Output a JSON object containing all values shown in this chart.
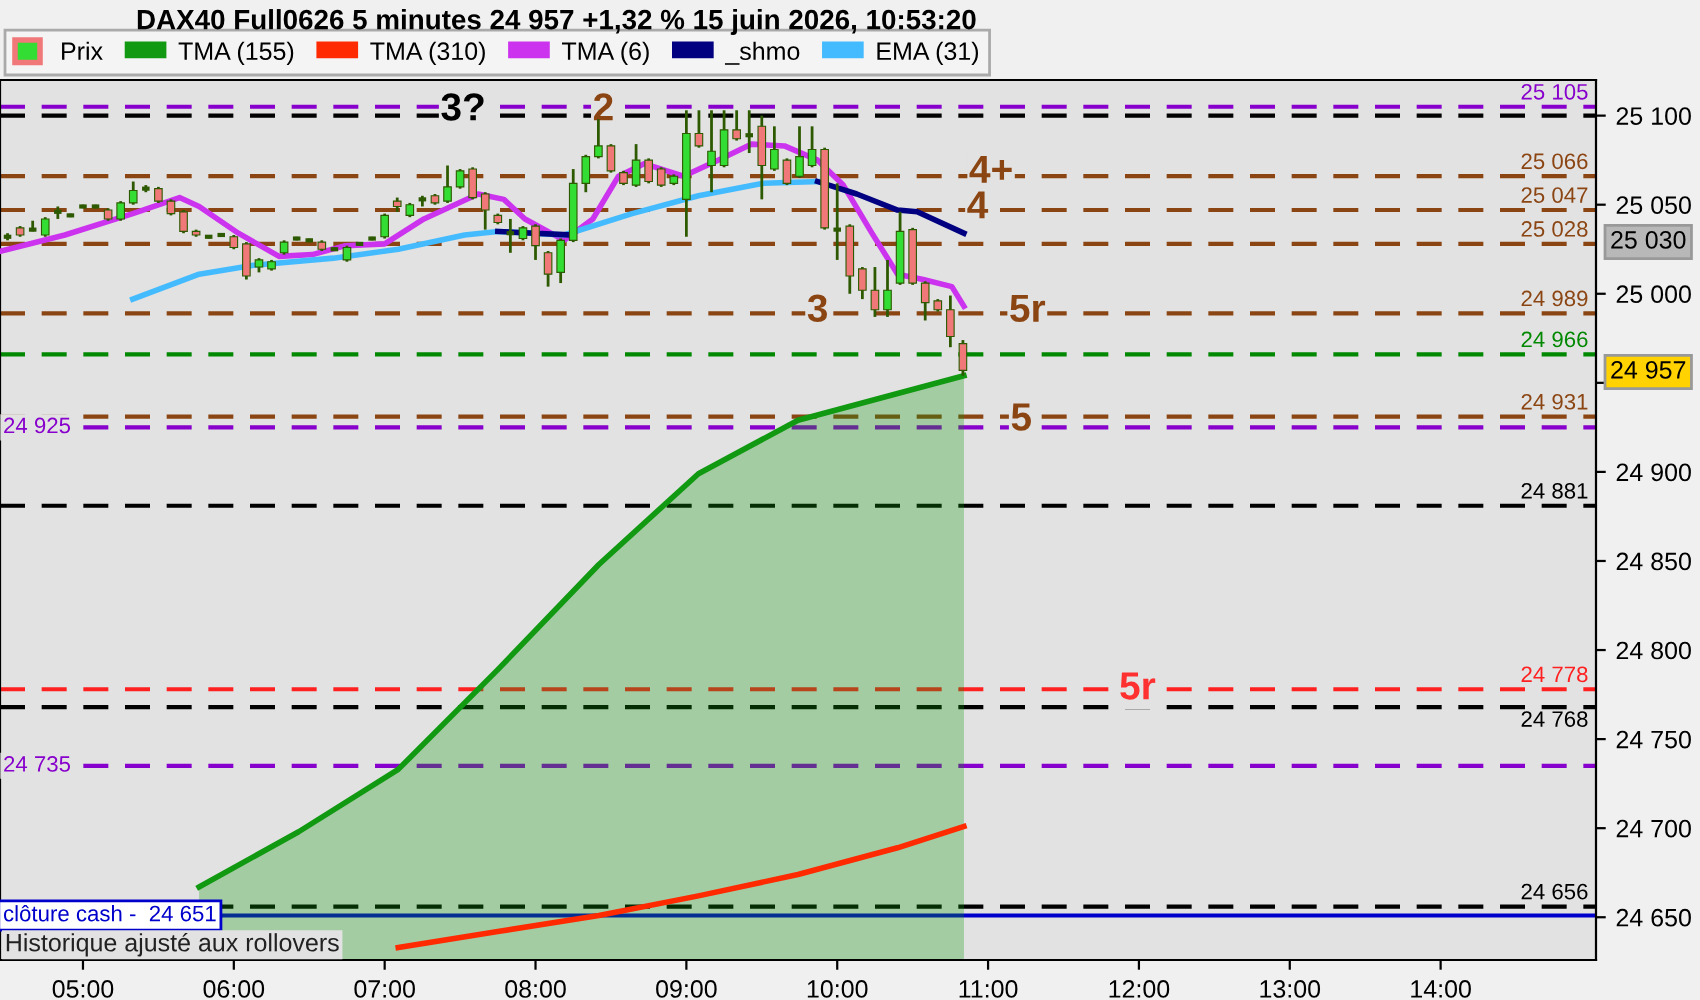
{
  "chart_data": {
    "type": "candlestick",
    "title": "DAX40 Full0626 5 minutes 24 957 +1,32 % 15 juin 2026, 10:53:20",
    "xlim": [
      4.45,
      15.03
    ],
    "ylim": [
      24626,
      25120
    ],
    "xticks": [
      {
        "value": 5,
        "label": "05:00"
      },
      {
        "value": 6,
        "label": "06:00"
      },
      {
        "value": 7,
        "label": "07:00"
      },
      {
        "value": 8,
        "label": "08:00"
      },
      {
        "value": 9,
        "label": "09:00"
      },
      {
        "value": 10,
        "label": "10:00"
      },
      {
        "value": 11,
        "label": "11:00"
      },
      {
        "value": 12,
        "label": "12:00"
      },
      {
        "value": 13,
        "label": "13:00"
      },
      {
        "value": 14,
        "label": "14:00"
      }
    ],
    "yticks": [
      {
        "value": 24650,
        "label": "24 650"
      },
      {
        "value": 24700,
        "label": "24 700"
      },
      {
        "value": 24750,
        "label": "24 750"
      },
      {
        "value": 24800,
        "label": "24 800"
      },
      {
        "value": 24850,
        "label": "24 850"
      },
      {
        "value": 24900,
        "label": "24 900"
      },
      {
        "value": 24950,
        "label": null
      },
      {
        "value": 25000,
        "label": "25 000"
      },
      {
        "value": 25050,
        "label": "25 050"
      },
      {
        "value": 25100,
        "label": "25 100"
      }
    ],
    "grid": false,
    "legend": "top left",
    "series": [
      {
        "name": "Prix",
        "colors": [
          "#2d5a00",
          "#f07878",
          "#2d5a00",
          "#33dd33",
          "#2d5a00",
          "#2d5a00",
          "#2d5a00",
          "#2d5a00",
          "#f07878",
          "#33dd33",
          "#33dd33",
          "#2d5a00",
          "#f07878",
          "#f07878",
          "#f07878",
          "#f07878",
          "#2d5a00",
          "#2d5a00",
          "#f07878",
          "#f07878",
          "#33dd33",
          "#33dd33",
          "#33dd33",
          "#2d5a00",
          "#2d5a00",
          "#f07878",
          "#2d5a00",
          "#33dd33",
          "#2d5a00",
          "#2d5a00",
          "#33dd33",
          "#f07878",
          "#33dd33",
          "#2d5a00",
          "#f07878",
          "#33dd33",
          "#33dd33",
          "#f07878",
          "#f07878",
          "#f07878",
          "#2d5a00",
          "#33dd33",
          "#f07878",
          "#f07878",
          "#33dd33",
          "#33dd33",
          "#33dd33",
          "#33dd33",
          "#f07878",
          "#f07878",
          "#33dd33",
          "#f07878",
          "#f07878",
          "#33dd33",
          "#33dd33",
          "#f07878",
          "#33dd33",
          "#33dd33",
          "#f07878",
          "#2d5a00",
          "#f07878",
          "#33dd33",
          "#f07878",
          "#33dd33",
          "#33dd33",
          "#f07878",
          "#2d5a00",
          "#f07878",
          "#f07878",
          "#f07878",
          "#33dd33",
          "#33dd33",
          "#f07878",
          "#f07878",
          "#f07878",
          "#f07878",
          "#f07878"
        ],
        "x": [
          4.5,
          4.5833,
          4.6667,
          4.75,
          4.8333,
          4.9167,
          5,
          5.0833,
          5.1667,
          5.25,
          5.3333,
          5.4167,
          5.5,
          5.5833,
          5.6667,
          5.75,
          5.8333,
          5.9167,
          6,
          6.0833,
          6.1667,
          6.25,
          6.3333,
          6.4167,
          6.5,
          6.5833,
          6.6667,
          6.75,
          6.8333,
          6.9167,
          7,
          7.0833,
          7.1667,
          7.25,
          7.3333,
          7.4167,
          7.5,
          7.5833,
          7.6667,
          7.75,
          7.8333,
          7.9167,
          8,
          8.0833,
          8.1667,
          8.25,
          8.3333,
          8.4167,
          8.5,
          8.5833,
          8.6667,
          8.75,
          8.8333,
          8.9167,
          9,
          9.0833,
          9.1667,
          9.25,
          9.3333,
          9.4167,
          9.5,
          9.5833,
          9.6667,
          9.75,
          9.8333,
          9.9167,
          10,
          10.0833,
          10.1667,
          10.25,
          10.3333,
          10.4167,
          10.5,
          10.5833,
          10.6667,
          10.75,
          10.8333
        ],
        "ohlc": [
          [
            25032,
            25034,
            25030,
            25032
          ],
          [
            25037,
            25038,
            25032,
            25033
          ],
          [
            25036,
            25041,
            25035,
            25036
          ],
          [
            25033,
            25043,
            25032,
            25042
          ],
          [
            25046,
            25049,
            25042,
            25046
          ],
          [
            25044,
            25045,
            25043,
            25044
          ],
          [
            25049,
            25050,
            25048,
            25049
          ],
          [
            25049,
            25050,
            25048,
            25049
          ],
          [
            25047,
            25048,
            25041,
            25042
          ],
          [
            25042,
            25052,
            25041,
            25051
          ],
          [
            25051,
            25063,
            25050,
            25058
          ],
          [
            25059,
            25061,
            25057,
            25059
          ],
          [
            25059,
            25060,
            25051,
            25052
          ],
          [
            25052,
            25053,
            25044,
            25045
          ],
          [
            25046,
            25047,
            25034,
            25035
          ],
          [
            25035,
            25036,
            25032,
            25033
          ],
          [
            25032,
            25033,
            25031,
            25032
          ],
          [
            25033,
            25034,
            25032,
            25033
          ],
          [
            25032,
            25033,
            25025,
            25026
          ],
          [
            25028,
            25029,
            25008,
            25010
          ],
          [
            25015,
            25020,
            25012,
            25019
          ],
          [
            25014,
            25019,
            25013,
            25018
          ],
          [
            25023,
            25030,
            25022,
            25029
          ],
          [
            25031,
            25032,
            25030,
            25031
          ],
          [
            25030,
            25031,
            25029,
            25030
          ],
          [
            25029,
            25030,
            25024,
            25025
          ],
          [
            25025,
            25026,
            25024,
            25025
          ],
          [
            25019,
            25027,
            25018,
            25026
          ],
          [
            25028,
            25029,
            25027,
            25028
          ],
          [
            25031,
            25032,
            25030,
            25031
          ],
          [
            25032,
            25045,
            25031,
            25044
          ],
          [
            25052,
            25054,
            25046,
            25049
          ],
          [
            25044,
            25051,
            25043,
            25050
          ],
          [
            25053,
            25055,
            25049,
            25053
          ],
          [
            25055,
            25056,
            25050,
            25051
          ],
          [
            25052,
            25072,
            25051,
            25060
          ],
          [
            25060,
            25070,
            25059,
            25069
          ],
          [
            25070,
            25071,
            25053,
            25054
          ],
          [
            25056,
            25057,
            25036,
            25047
          ],
          [
            25044,
            25045,
            25039,
            25040
          ],
          [
            25034,
            25042,
            25023,
            25034
          ],
          [
            25031,
            25038,
            25030,
            25037
          ],
          [
            25038,
            25039,
            25019,
            25027
          ],
          [
            25023,
            25024,
            25004,
            25011
          ],
          [
            25012,
            25031,
            25006,
            25030
          ],
          [
            25030,
            25070,
            25029,
            25062
          ],
          [
            25062,
            25078,
            25057,
            25077
          ],
          [
            25077,
            25098,
            25076,
            25083
          ],
          [
            25083,
            25084,
            25068,
            25069
          ],
          [
            25068,
            25069,
            25061,
            25062
          ],
          [
            25061,
            25084,
            25060,
            25075
          ],
          [
            25075,
            25076,
            25062,
            25063
          ],
          [
            25070,
            25071,
            25060,
            25061
          ],
          [
            25062,
            25067,
            25061,
            25066
          ],
          [
            25053,
            25103,
            25032,
            25090
          ],
          [
            25090,
            25103,
            25082,
            25083
          ],
          [
            25072,
            25103,
            25057,
            25080
          ],
          [
            25072,
            25103,
            25071,
            25092
          ],
          [
            25092,
            25103,
            25086,
            25087
          ],
          [
            25089,
            25103,
            25079,
            25089
          ],
          [
            25094,
            25100,
            25053,
            25072
          ],
          [
            25070,
            25094,
            25069,
            25081
          ],
          [
            25075,
            25076,
            25061,
            25062
          ],
          [
            25066,
            25094,
            25065,
            25077
          ],
          [
            25072,
            25094,
            25071,
            25081
          ],
          [
            25081,
            25082,
            25036,
            25037
          ],
          [
            25036,
            25062,
            25019,
            25036
          ],
          [
            25038,
            25039,
            25000,
            25010
          ],
          [
            25014,
            25015,
            24997,
            25002
          ],
          [
            25002,
            25015,
            24987,
            24991
          ],
          [
            24991,
            25019,
            24987,
            25002
          ],
          [
            25006,
            25046,
            25005,
            25035
          ],
          [
            25036,
            25037,
            25005,
            25006
          ],
          [
            25006,
            25007,
            24985,
            24995
          ],
          [
            24996,
            24997,
            24990,
            24991
          ],
          [
            24991,
            24999,
            24970,
            24976
          ],
          [
            24972,
            24974,
            24954,
            24957
          ]
        ]
      },
      {
        "name": "TMA (155)",
        "type": "area",
        "color": "#119911",
        "x": [
          5.77,
          6.43,
          7.09,
          7.75,
          8.42,
          9.08,
          9.74,
          10.4,
          10.84
        ],
        "values": [
          24667,
          24698,
          24733,
          24789,
          24848,
          24899,
          24929,
          24944,
          24954
        ]
      },
      {
        "name": "TMA (310)",
        "type": "line",
        "color": "#ff2a00",
        "x": [
          7.09,
          7.75,
          8.42,
          9.08,
          9.74,
          10.4,
          10.84
        ],
        "values": [
          24633,
          24642,
          24651,
          24662,
          24674,
          24689,
          24701
        ]
      },
      {
        "name": "TMA (6)",
        "type": "line",
        "color": "#cc33ee",
        "x": [
          4.46,
          4.88,
          5.33,
          5.64,
          5.77,
          6.03,
          6.3,
          6.52,
          6.74,
          7.0,
          7.26,
          7.62,
          7.79,
          7.93,
          8.19,
          8.38,
          8.55,
          8.72,
          8.98,
          9.21,
          9.43,
          9.65,
          9.87,
          10.04,
          10.23,
          10.4,
          10.57,
          10.76,
          10.84
        ],
        "values": [
          25024,
          25033,
          25045,
          25054,
          25049,
          25034,
          25021,
          25022,
          25027,
          25028,
          25042,
          25056,
          25053,
          25042,
          25030,
          25042,
          25066,
          25073,
          25066,
          25075,
          25084,
          25083,
          25075,
          25061,
          25034,
          25011,
          25008,
          25004,
          24993
        ]
      },
      {
        "name": "_shmo",
        "type": "line",
        "color": "#000080",
        "x": [
          7.75,
          8.24,
          9.0,
          9.87,
          10.13,
          10.4,
          10.53,
          10.84
        ],
        "values": [
          25035,
          25033,
          null,
          25063,
          25056,
          25047,
          25046,
          25034
        ]
      },
      {
        "name": "EMA (31)",
        "type": "line",
        "color": "#44bbff",
        "x": [
          5.33,
          5.77,
          6.13,
          6.66,
          7.09,
          7.53,
          7.75,
          8.19,
          8.64,
          9.08,
          9.51,
          9.87
        ],
        "values": [
          24997,
          25011,
          25016,
          25020,
          25025,
          25033,
          25035,
          25033,
          25045,
          25055,
          25062,
          25063
        ]
      }
    ],
    "ref_lines": [
      {
        "axis": "y",
        "value": 25105,
        "label": "25 105",
        "color": "#8800cc",
        "line_style": "dashed"
      },
      {
        "axis": "y",
        "value": 25100,
        "color": "#000000",
        "line_style": "dashed"
      },
      {
        "axis": "y",
        "value": 25066,
        "label": "25 066",
        "color": "#8b4513",
        "line_style": "dashed"
      },
      {
        "axis": "y",
        "value": 25047,
        "label": "25 047",
        "color": "#8b4513",
        "line_style": "dashed"
      },
      {
        "axis": "y",
        "value": 25028,
        "label": "25 028",
        "color": "#8b4513",
        "line_style": "dashed"
      },
      {
        "axis": "y",
        "value": 24989,
        "label": "24 989",
        "color": "#8b4513",
        "line_style": "dashed"
      },
      {
        "axis": "y",
        "value": 24966,
        "label": "24 966",
        "color": "#008800",
        "line_style": "dashed"
      },
      {
        "axis": "y",
        "value": 24931,
        "label": "24 931",
        "color": "#8b4513",
        "line_style": "dashed"
      },
      {
        "axis": "y",
        "value": 24925,
        "color": "#8800cc",
        "line_style": "dashed"
      },
      {
        "axis": "y",
        "value": 24881,
        "label": "24 881",
        "color": "#000000",
        "line_style": "dashed"
      },
      {
        "axis": "y",
        "value": 24778,
        "label": "24 778",
        "color": "#ff2020",
        "line_style": "dashed"
      },
      {
        "axis": "y",
        "value": 24768,
        "label": "24 768",
        "color": "#000000",
        "line_style": "dashed"
      },
      {
        "axis": "y",
        "value": 24735,
        "color": "#8800cc",
        "line_style": "dashed"
      },
      {
        "axis": "y",
        "value": 24656,
        "label": "24 656",
        "color": "#000000",
        "line_style": "dashed"
      },
      {
        "axis": "y",
        "value": 24651,
        "color": "#0000cc",
        "line_style": "solid"
      }
    ],
    "annotations": [
      {
        "text": "3?",
        "x": 7.52,
        "y": 25103
      },
      {
        "text": "2",
        "x": 8.45,
        "y": 25103
      },
      {
        "text": "4+",
        "x": 11.02,
        "y": 25068
      },
      {
        "text": "4",
        "x": 10.93,
        "y": 25048
      },
      {
        "text": "3",
        "x": 9.87,
        "y": 24990
      },
      {
        "text": "5r",
        "x": 11.26,
        "y": 24990
      },
      {
        "text": "5",
        "x": 11.22,
        "y": 24929
      },
      {
        "text": "5r",
        "x": 11.99,
        "y": 24778
      },
      {
        "text": "24 925",
        "x": 4.47,
        "y": 24925
      },
      {
        "text": "24 735",
        "x": 4.47,
        "y": 24735
      },
      {
        "text": "clôture cash -  24 651",
        "x": 4.47,
        "y": 24651
      },
      "24 957",
      "25 030",
      "Historique ajusté aux rollovers"
    ]
  }
}
